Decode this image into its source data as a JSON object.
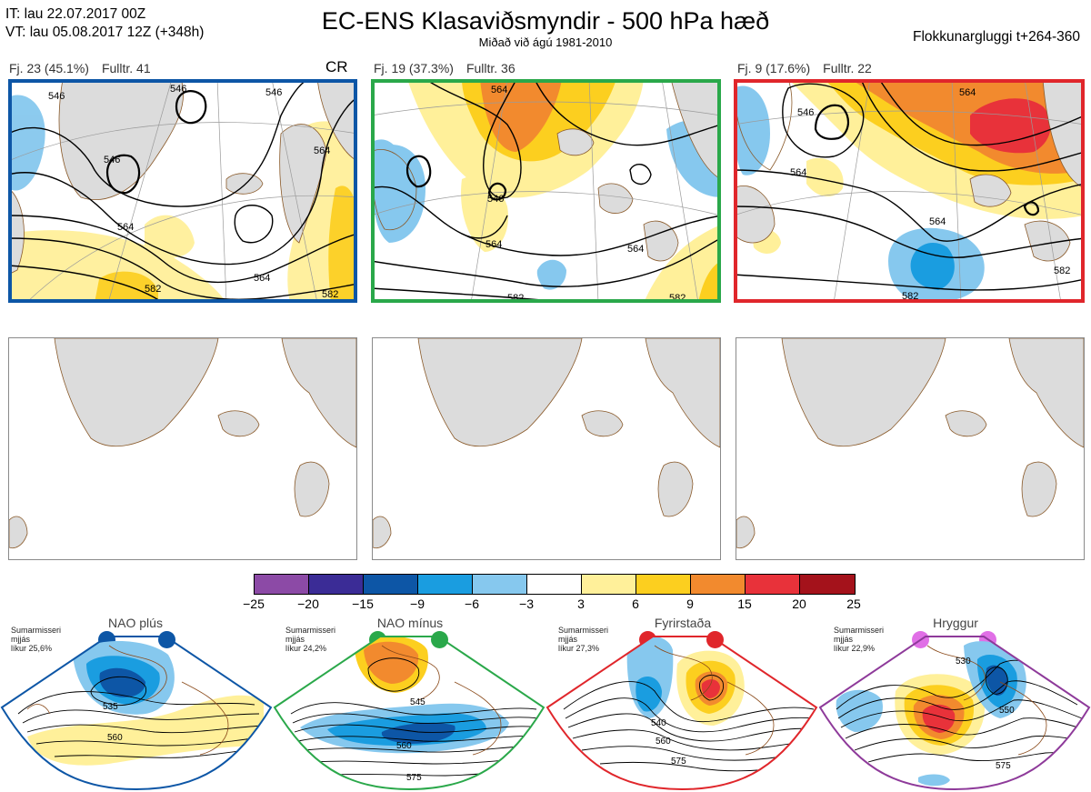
{
  "header": {
    "it": "IT: lau 22.07.2017 00Z",
    "vt": "VT: lau 05.08.2017 12Z  (+348h)",
    "title": "EC-ENS Klasaviðsmyndir - 500 hPa hæð",
    "subtitle": "Miðað við ágú 1981-2010",
    "window": "Flokkunargluggi t+264-360"
  },
  "clusters": [
    {
      "fj": "Fj. 23 (45.1%)",
      "fulltr": "Fulltr. 41",
      "tag": "CR",
      "frame_color": "#0d56a6",
      "contour_labels": [
        "546",
        "546",
        "546",
        "564",
        "564",
        "564",
        "582",
        "582",
        "546"
      ]
    },
    {
      "fj": "Fj. 19 (37.3%)",
      "fulltr": "Fulltr. 36",
      "tag": "",
      "frame_color": "#2aa84a",
      "contour_labels": [
        "564",
        "546",
        "564",
        "564",
        "582",
        "582"
      ]
    },
    {
      "fj": "Fj. 9 (17.6%)",
      "fulltr": "Fulltr. 22",
      "tag": "",
      "frame_color": "#e0262b",
      "contour_labels": [
        "546",
        "564",
        "564",
        "564",
        "582",
        "582"
      ]
    }
  ],
  "colorbar": {
    "ticks": [
      "−25",
      "−20",
      "−15",
      "−9",
      "−6",
      "−3",
      "3",
      "6",
      "9",
      "15",
      "20",
      "25"
    ],
    "colors": [
      "#8c4aa6",
      "#3b2c96",
      "#0d56a6",
      "#1a9de0",
      "#86c8ee",
      "#ffffff",
      "#fff09a",
      "#fccf1f",
      "#f28a2e",
      "#e8323a",
      "#a4121b"
    ]
  },
  "regimes": [
    {
      "name": "NAO plús",
      "note": [
        "Sumarmisseri",
        "mjjás",
        "líkur 25,6%"
      ],
      "color": "#0d56a6",
      "labels": [
        "535",
        "560"
      ]
    },
    {
      "name": "NAO mínus",
      "note": [
        "Sumarmisseri",
        "mjjás",
        "líkur 24,2%"
      ],
      "color": "#2aa84a",
      "labels": [
        "545",
        "560",
        "575"
      ]
    },
    {
      "name": "Fyrirstaða",
      "note": [
        "Sumarmisseri",
        "mjjás",
        "líkur 27,3%"
      ],
      "color": "#e0262b",
      "labels": [
        "540",
        "560",
        "575"
      ]
    },
    {
      "name": "Hryggur",
      "note": [
        "Sumarmisseri",
        "mjjás",
        "líkur 22,9%"
      ],
      "color": "#8e3a9a",
      "labels": [
        "530",
        "550",
        "575"
      ]
    }
  ]
}
